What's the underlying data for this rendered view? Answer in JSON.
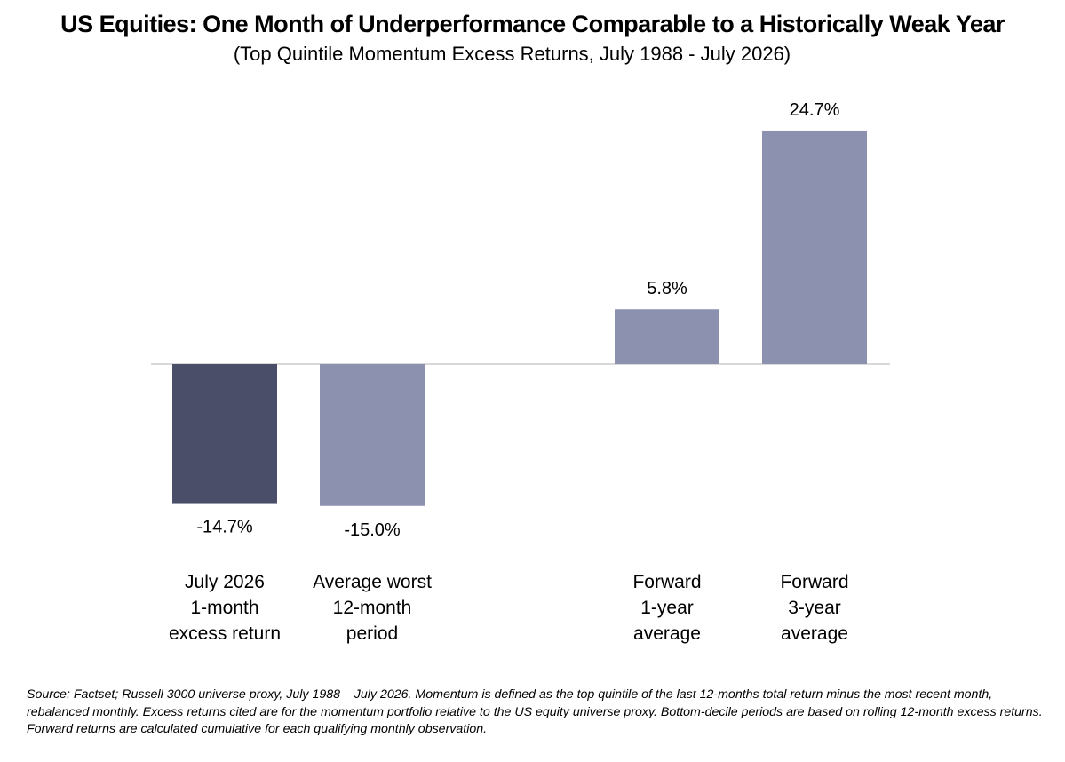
{
  "title": "US Equities: One Month of Underperformance Comparable to a Historically Weak Year",
  "subtitle": "(Top Quintile Momentum Excess Returns, July 1988 - July 2026)",
  "footnote": "Source: Factset; Russell 3000 universe proxy, July 1988 – July 2026. Momentum is defined as the top quintile of the last 12-months total return minus the most recent month, rebalanced monthly. Excess returns cited are for the momentum portfolio relative to the US equity universe proxy. Bottom-decile periods are based on rolling 12-month excess returns. Forward returns are calculated cumulative for each qualifying monthly observation.",
  "chart_data": {
    "type": "bar",
    "categories": [
      [
        "July 2026",
        "1-month",
        "excess return"
      ],
      [
        "Average worst",
        "12-month",
        "period"
      ],
      [],
      [
        "Forward",
        "1-year",
        "average"
      ],
      [
        "Forward",
        "3-year",
        "average"
      ]
    ],
    "values": [
      -14.7,
      -15.0,
      null,
      5.8,
      24.7
    ],
    "data_labels": [
      "-14.7%",
      "-15.0%",
      "",
      "5.8%",
      "24.7%"
    ],
    "bar_colors": [
      "#4a4e69",
      "#8c91af",
      null,
      "#8c91af",
      "#8c91af"
    ],
    "unit": "%",
    "ylim": [
      -15.0,
      24.7
    ],
    "grid": false,
    "legend": "none",
    "y_axis_visible": false
  }
}
